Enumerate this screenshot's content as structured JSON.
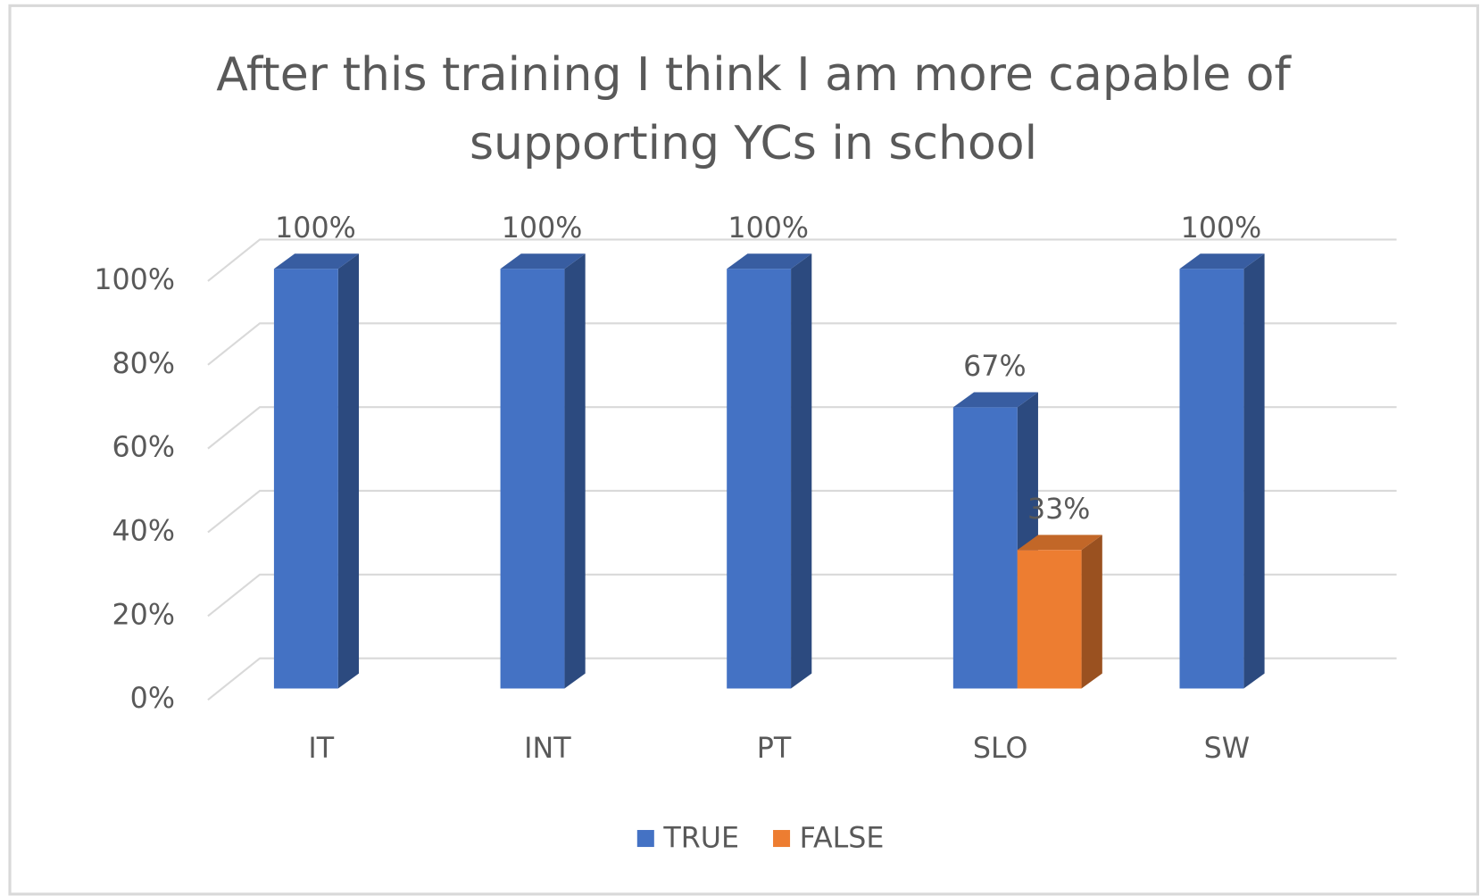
{
  "chart_data": {
    "type": "bar3d",
    "title": "After this training I think I am more capable of supporting YCs in school",
    "categories": [
      "IT",
      "INT",
      "PT",
      "SLO",
      "SW"
    ],
    "series": [
      {
        "name": "TRUE",
        "color": "#4472c4",
        "values": [
          100,
          100,
          100,
          67,
          100
        ],
        "value_labels": [
          "100%",
          "100%",
          "100%",
          "67%",
          "100%"
        ]
      },
      {
        "name": "FALSE",
        "color": "#ed7d31",
        "values": [
          null,
          null,
          null,
          33,
          null
        ],
        "value_labels": [
          null,
          null,
          null,
          "33%",
          null
        ]
      }
    ],
    "ylim": [
      0,
      100
    ],
    "yticks": [
      {
        "value": 0,
        "label": "0%"
      },
      {
        "value": 20,
        "label": "20%"
      },
      {
        "value": 40,
        "label": "40%"
      },
      {
        "value": 60,
        "label": "60%"
      },
      {
        "value": 80,
        "label": "80%"
      },
      {
        "value": 100,
        "label": "100%"
      }
    ],
    "grid": true,
    "legend": "bottom"
  }
}
